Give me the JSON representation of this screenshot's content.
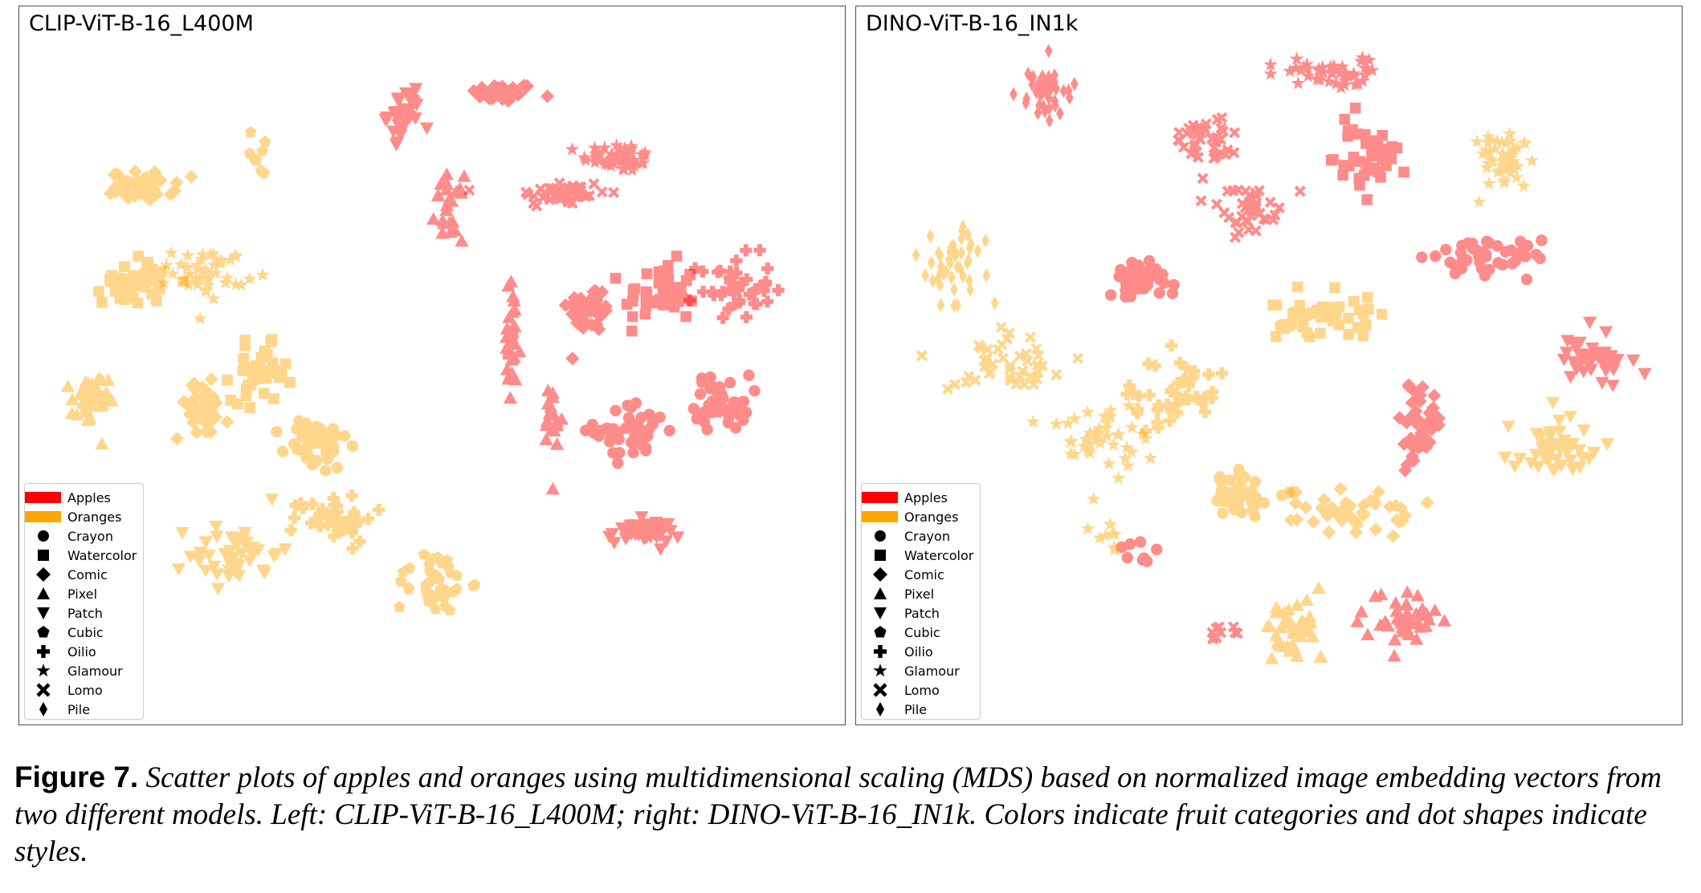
{
  "figure": {
    "label": "Figure 7.",
    "caption": "Scatter plots of apples and oranges using multidimensional scaling (MDS) based on normalized image embedding vectors from two different models. Left: CLIP-ViT-B-16_L400M; right: DINO-ViT-B-16_IN1k. Colors indicate fruit categories and dot shapes indicate styles."
  },
  "legend": {
    "categories": [
      {
        "label": "Apples",
        "color": "#ff0000"
      },
      {
        "label": "Oranges",
        "color": "#ffa500"
      }
    ],
    "styles": [
      {
        "label": "Crayon",
        "marker": "circle"
      },
      {
        "label": "Watercolor",
        "marker": "square"
      },
      {
        "label": "Comic",
        "marker": "diamond"
      },
      {
        "label": "Pixel",
        "marker": "triangle-up"
      },
      {
        "label": "Patch",
        "marker": "triangle-down"
      },
      {
        "label": "Cubic",
        "marker": "pentagon"
      },
      {
        "label": "Oilio",
        "marker": "plus"
      },
      {
        "label": "Glamour",
        "marker": "star"
      },
      {
        "label": "Lomo",
        "marker": "x"
      },
      {
        "label": "Pile",
        "marker": "thin-diamond"
      }
    ]
  },
  "chart_data": [
    {
      "type": "scatter",
      "title": "CLIP-ViT-B-16_L400M",
      "xlim": [
        0,
        100
      ],
      "ylim": [
        0,
        100
      ],
      "axes_visible": false,
      "grid": false,
      "legend_position": "bottom-left",
      "marker_alpha": 0.45,
      "clusters": [
        {
          "fruit": "Apples",
          "style": "Comic",
          "center": [
            58.5,
            88.0
          ],
          "spread": [
            3.5,
            1.2
          ],
          "count": 45
        },
        {
          "fruit": "Apples",
          "style": "Glamour",
          "center": [
            72.5,
            79.0
          ],
          "spread": [
            4.0,
            1.8
          ],
          "count": 45
        },
        {
          "fruit": "Apples",
          "style": "Lomo",
          "center": [
            65.5,
            74.0
          ],
          "spread": [
            5.0,
            1.8
          ],
          "count": 45
        },
        {
          "fruit": "Apples",
          "style": "Comic",
          "center": [
            69.0,
            58.0
          ],
          "spread": [
            2.5,
            3.0
          ],
          "count": 45
        },
        {
          "fruit": "Apples",
          "style": "Watercolor",
          "center": [
            77.5,
            60.0
          ],
          "spread": [
            4.0,
            4.0
          ],
          "count": 45
        },
        {
          "fruit": "Apples",
          "style": "Oilio",
          "center": [
            86.5,
            61.0
          ],
          "spread": [
            4.0,
            4.0
          ],
          "count": 45
        },
        {
          "fruit": "Apples",
          "style": "Crayon",
          "center": [
            74.0,
            41.0
          ],
          "spread": [
            4.0,
            3.5
          ],
          "count": 45
        },
        {
          "fruit": "Apples",
          "style": "Crayon",
          "center": [
            85.0,
            45.0
          ],
          "spread": [
            3.0,
            3.5
          ],
          "count": 45
        },
        {
          "fruit": "Apples",
          "style": "Patch",
          "center": [
            75.5,
            27.0
          ],
          "spread": [
            4.0,
            1.5
          ],
          "count": 45
        },
        {
          "fruit": "Apples",
          "style": "Patch",
          "center": [
            46.5,
            85.0
          ],
          "spread": [
            1.8,
            3.0
          ],
          "count": 35
        },
        {
          "fruit": "Apples",
          "style": "Pixel",
          "center": [
            52.0,
            72.0
          ],
          "spread": [
            1.5,
            4.0
          ],
          "count": 25
        },
        {
          "fruit": "Apples",
          "style": "Pixel",
          "center": [
            59.5,
            53.0
          ],
          "spread": [
            1.0,
            8.0
          ],
          "count": 30
        },
        {
          "fruit": "Apples",
          "style": "Pixel",
          "center": [
            64.5,
            42.0
          ],
          "spread": [
            1.0,
            6.0
          ],
          "count": 20
        },
        {
          "fruit": "Oranges",
          "style": "Comic",
          "center": [
            15.0,
            75.0
          ],
          "spread": [
            3.5,
            1.8
          ],
          "count": 45
        },
        {
          "fruit": "Oranges",
          "style": "Watercolor",
          "center": [
            14.0,
            62.0
          ],
          "spread": [
            3.5,
            3.0
          ],
          "count": 45
        },
        {
          "fruit": "Oranges",
          "style": "Glamour",
          "center": [
            23.0,
            63.0
          ],
          "spread": [
            4.0,
            3.0
          ],
          "count": 45
        },
        {
          "fruit": "Oranges",
          "style": "Cubic",
          "center": [
            29.0,
            80.0
          ],
          "spread": [
            1.0,
            3.0
          ],
          "count": 8
        },
        {
          "fruit": "Oranges",
          "style": "Pixel",
          "center": [
            8.5,
            45.0
          ],
          "spread": [
            2.0,
            3.5
          ],
          "count": 45
        },
        {
          "fruit": "Oranges",
          "style": "Comic",
          "center": [
            22.0,
            44.0
          ],
          "spread": [
            3.0,
            3.5
          ],
          "count": 45
        },
        {
          "fruit": "Oranges",
          "style": "Watercolor",
          "center": [
            29.0,
            49.0
          ],
          "spread": [
            3.0,
            3.5
          ],
          "count": 45
        },
        {
          "fruit": "Oranges",
          "style": "Crayon",
          "center": [
            36.0,
            39.0
          ],
          "spread": [
            3.5,
            3.5
          ],
          "count": 45
        },
        {
          "fruit": "Oranges",
          "style": "Oilio",
          "center": [
            38.0,
            29.0
          ],
          "spread": [
            4.5,
            3.0
          ],
          "count": 45
        },
        {
          "fruit": "Oranges",
          "style": "Patch",
          "center": [
            26.0,
            24.0
          ],
          "spread": [
            5.0,
            4.0
          ],
          "count": 45
        },
        {
          "fruit": "Oranges",
          "style": "Cubic",
          "center": [
            50.0,
            20.0
          ],
          "spread": [
            4.0,
            4.0
          ],
          "count": 40
        }
      ]
    },
    {
      "type": "scatter",
      "title": "DINO-ViT-B-16_IN1k",
      "xlim": [
        0,
        100
      ],
      "ylim": [
        0,
        100
      ],
      "axes_visible": false,
      "grid": false,
      "legend_position": "bottom-left",
      "marker_alpha": 0.45,
      "clusters": [
        {
          "fruit": "Apples",
          "style": "Pile",
          "center": [
            23.0,
            88.0
          ],
          "spread": [
            3.0,
            3.0
          ],
          "count": 45
        },
        {
          "fruit": "Apples",
          "style": "Glamour",
          "center": [
            57.0,
            91.0
          ],
          "spread": [
            5.0,
            2.0
          ],
          "count": 45
        },
        {
          "fruit": "Apples",
          "style": "Lomo",
          "center": [
            42.0,
            81.0
          ],
          "spread": [
            3.0,
            3.0
          ],
          "count": 45
        },
        {
          "fruit": "Apples",
          "style": "Lomo",
          "center": [
            47.0,
            72.0
          ],
          "spread": [
            3.0,
            3.0
          ],
          "count": 45
        },
        {
          "fruit": "Apples",
          "style": "Watercolor",
          "center": [
            62.0,
            79.0
          ],
          "spread": [
            4.0,
            4.0
          ],
          "count": 45
        },
        {
          "fruit": "Apples",
          "style": "Crayon",
          "center": [
            34.5,
            62.0
          ],
          "spread": [
            3.0,
            2.5
          ],
          "count": 45
        },
        {
          "fruit": "Apples",
          "style": "Crayon",
          "center": [
            75.0,
            65.0
          ],
          "spread": [
            7.0,
            2.5
          ],
          "count": 45
        },
        {
          "fruit": "Apples",
          "style": "Patch",
          "center": [
            89.0,
            51.0
          ],
          "spread": [
            4.0,
            3.0
          ],
          "count": 45
        },
        {
          "fruit": "Apples",
          "style": "Comic",
          "center": [
            68.0,
            42.0
          ],
          "spread": [
            2.5,
            5.0
          ],
          "count": 45
        },
        {
          "fruit": "Apples",
          "style": "Pixel",
          "center": [
            66.0,
            15.0
          ],
          "spread": [
            4.0,
            3.5
          ],
          "count": 45
        },
        {
          "fruit": "Apples",
          "style": "Lomo",
          "center": [
            44.0,
            13.0
          ],
          "spread": [
            2.5,
            1.5
          ],
          "count": 10
        },
        {
          "fruit": "Apples",
          "style": "Crayon",
          "center": [
            34.0,
            25.0
          ],
          "spread": [
            3.0,
            3.0
          ],
          "count": 8
        },
        {
          "fruit": "Oranges",
          "style": "Glamour",
          "center": [
            78.0,
            79.0
          ],
          "spread": [
            4.0,
            4.0
          ],
          "count": 45
        },
        {
          "fruit": "Oranges",
          "style": "Pile",
          "center": [
            12.0,
            64.0
          ],
          "spread": [
            4.0,
            5.0
          ],
          "count": 45
        },
        {
          "fruit": "Oranges",
          "style": "Watercolor",
          "center": [
            56.0,
            57.0
          ],
          "spread": [
            6.0,
            3.0
          ],
          "count": 45
        },
        {
          "fruit": "Oranges",
          "style": "Lomo",
          "center": [
            18.0,
            50.0
          ],
          "spread": [
            9.0,
            4.0
          ],
          "count": 45
        },
        {
          "fruit": "Oranges",
          "style": "Oilio",
          "center": [
            38.0,
            46.0
          ],
          "spread": [
            7.0,
            5.0
          ],
          "count": 45
        },
        {
          "fruit": "Oranges",
          "style": "Glamour",
          "center": [
            29.0,
            40.0
          ],
          "spread": [
            5.0,
            5.0
          ],
          "count": 45
        },
        {
          "fruit": "Oranges",
          "style": "Crayon",
          "center": [
            46.5,
            32.0
          ],
          "spread": [
            4.0,
            3.0
          ],
          "count": 45
        },
        {
          "fruit": "Oranges",
          "style": "Comic",
          "center": [
            60.0,
            30.0
          ],
          "spread": [
            6.0,
            3.0
          ],
          "count": 45
        },
        {
          "fruit": "Oranges",
          "style": "Patch",
          "center": [
            85.0,
            39.0
          ],
          "spread": [
            4.0,
            3.5
          ],
          "count": 45
        },
        {
          "fruit": "Oranges",
          "style": "Pixel",
          "center": [
            53.0,
            13.0
          ],
          "spread": [
            3.5,
            4.0
          ],
          "count": 45
        },
        {
          "fruit": "Oranges",
          "style": "Glamour",
          "center": [
            30.0,
            26.0
          ],
          "spread": [
            2.5,
            2.5
          ],
          "count": 8
        }
      ]
    }
  ]
}
